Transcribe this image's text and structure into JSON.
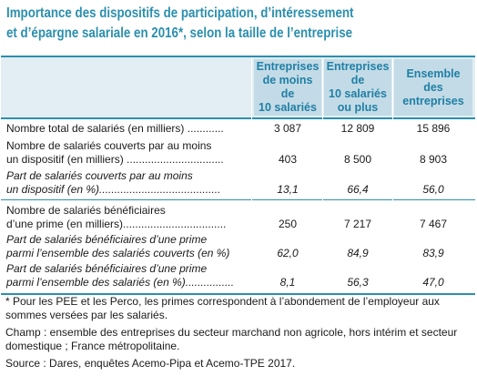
{
  "title": {
    "line1": "Importance des dispositifs de participation, d’intéressement",
    "line2": "et d’épargne salariale en 2016*, selon la taille de l’entreprise"
  },
  "columns": [
    "Entreprises de moins de 10 salariés",
    "Entreprises de 10 salariés ou plus",
    "Ensemble des entreprises"
  ],
  "columns_lines": [
    [
      "Entreprises",
      "de moins",
      "de",
      "10 salariés"
    ],
    [
      "Entreprises",
      "de",
      "10 salariés",
      "ou plus"
    ],
    [
      "Ensemble",
      "des",
      "entreprises"
    ]
  ],
  "rows": [
    {
      "label": [
        "Nombre total de salariés (en milliers) ............"
      ],
      "italic": false,
      "values": [
        "3 087",
        "12 809",
        "15 896"
      ]
    },
    {
      "label": [
        "Nombre de salariés couverts par au moins",
        "un dispositif (en milliers) ................................"
      ],
      "italic": false,
      "values": [
        "403",
        "8 500",
        "8 903"
      ]
    },
    {
      "label": [
        "Part de salariés couverts par au moins",
        "un dispositif (en %)........................................"
      ],
      "italic": true,
      "values": [
        "13,1",
        "66,4",
        "56,0"
      ]
    },
    {
      "label": [
        "Nombre de salariés bénéficiaires",
        "d’une prime (en milliers).................................."
      ],
      "italic": false,
      "values": [
        "250",
        "7 217",
        "7 467"
      ]
    },
    {
      "label": [
        "Part de salariés bénéficiaires d’une prime",
        "parmi l’ensemble des salariés couverts (en %)"
      ],
      "italic": true,
      "values": [
        "62,0",
        "84,9",
        "83,9"
      ]
    },
    {
      "label": [
        "Part de salariés bénéficiaires d’une prime",
        "parmi l’ensemble des salariés (en %)................"
      ],
      "italic": true,
      "values": [
        "8,1",
        "56,3",
        "47,0"
      ]
    }
  ],
  "notes": {
    "footnote": "* Pour les PEE et les Perco, les primes correspondent à l’abondement de l’employeur aux sommes versées par les salariés.",
    "scope": "Champ : ensemble des entreprises du secteur marchand non agricole, hors intérim et secteur domestique ; France métropolitaine.",
    "source": "Source : Dares, enquêtes Acemo-Pipa et Acemo-TPE 2017."
  },
  "colors": {
    "title": "#2b8fae",
    "header_text": "#1f7fa5",
    "header_bg": "#c3dbe6",
    "band_bg": "#e2eef3",
    "rule": "#2b8fae"
  }
}
